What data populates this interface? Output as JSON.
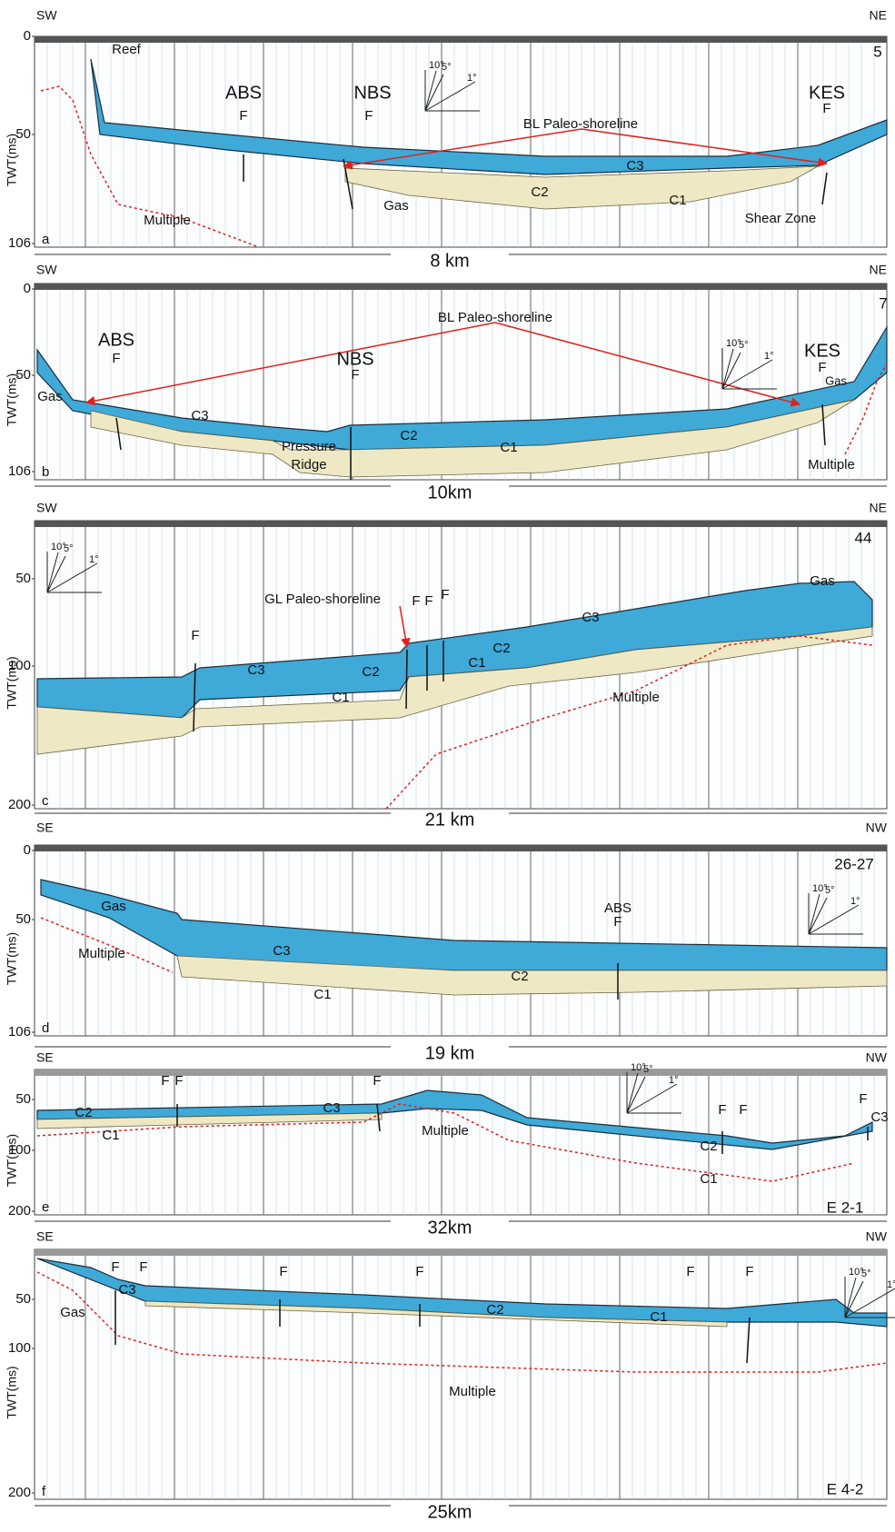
{
  "axis_label": "TWT(ms)",
  "compass_labels": [
    "10°",
    "5°",
    "1°"
  ],
  "panels": [
    {
      "letter": "a",
      "left": "SW",
      "right": "NE",
      "line": "5",
      "yticks": [
        0,
        50,
        106
      ],
      "scale": "8 km",
      "labels": [
        "Reef",
        "ABS",
        "F",
        "NBS",
        "F",
        "KES",
        "F",
        "BL Paleo-shoreline",
        "C3",
        "C2",
        "C1",
        "Gas",
        "Shear Zone",
        "Multiple"
      ]
    },
    {
      "letter": "b",
      "left": "SW",
      "right": "NE",
      "line": "7",
      "yticks": [
        0,
        50,
        106
      ],
      "scale": "10km",
      "labels": [
        "ABS",
        "F",
        "Gas",
        "C3",
        "NBS",
        "F",
        "Pressure",
        "Ridge",
        "C2",
        "C1",
        "BL Paleo-shoreline",
        "KES",
        "F",
        "Gas",
        "Multiple"
      ]
    },
    {
      "letter": "c",
      "left": "SW",
      "right": "NE",
      "line": "44",
      "yticks": [
        50,
        100,
        200
      ],
      "scale": "21 km",
      "labels": [
        "GL Paleo-shoreline",
        "F",
        "F",
        "F",
        "F",
        "C3",
        "C2",
        "C1",
        "C2",
        "C1",
        "C3",
        "Gas",
        "Multiple"
      ]
    },
    {
      "letter": "d",
      "left": "SE",
      "right": "NW",
      "line": "26-27",
      "yticks": [
        0,
        50,
        106
      ],
      "scale": "19 km",
      "labels": [
        "Gas",
        "Multiple",
        "C3",
        "C2",
        "C1",
        "ABS",
        "F"
      ]
    },
    {
      "letter": "e",
      "left": "SE",
      "right": "NW",
      "line": "E 2-1",
      "yticks": [
        50,
        100,
        200
      ],
      "scale": "32km",
      "labels": [
        "F",
        "F",
        "F",
        "C2",
        "C1",
        "C3",
        "Multiple",
        "C2",
        "C1",
        "F",
        "F",
        "F",
        "C3"
      ]
    },
    {
      "letter": "f",
      "left": "SE",
      "right": "NW",
      "line": "E 4-2",
      "yticks": [
        50,
        100,
        200
      ],
      "scale": "25km",
      "labels": [
        "F",
        "F",
        "F",
        "F",
        "C3",
        "Gas",
        "C2",
        "C1",
        "F",
        "F",
        "Multiple"
      ]
    }
  ]
}
